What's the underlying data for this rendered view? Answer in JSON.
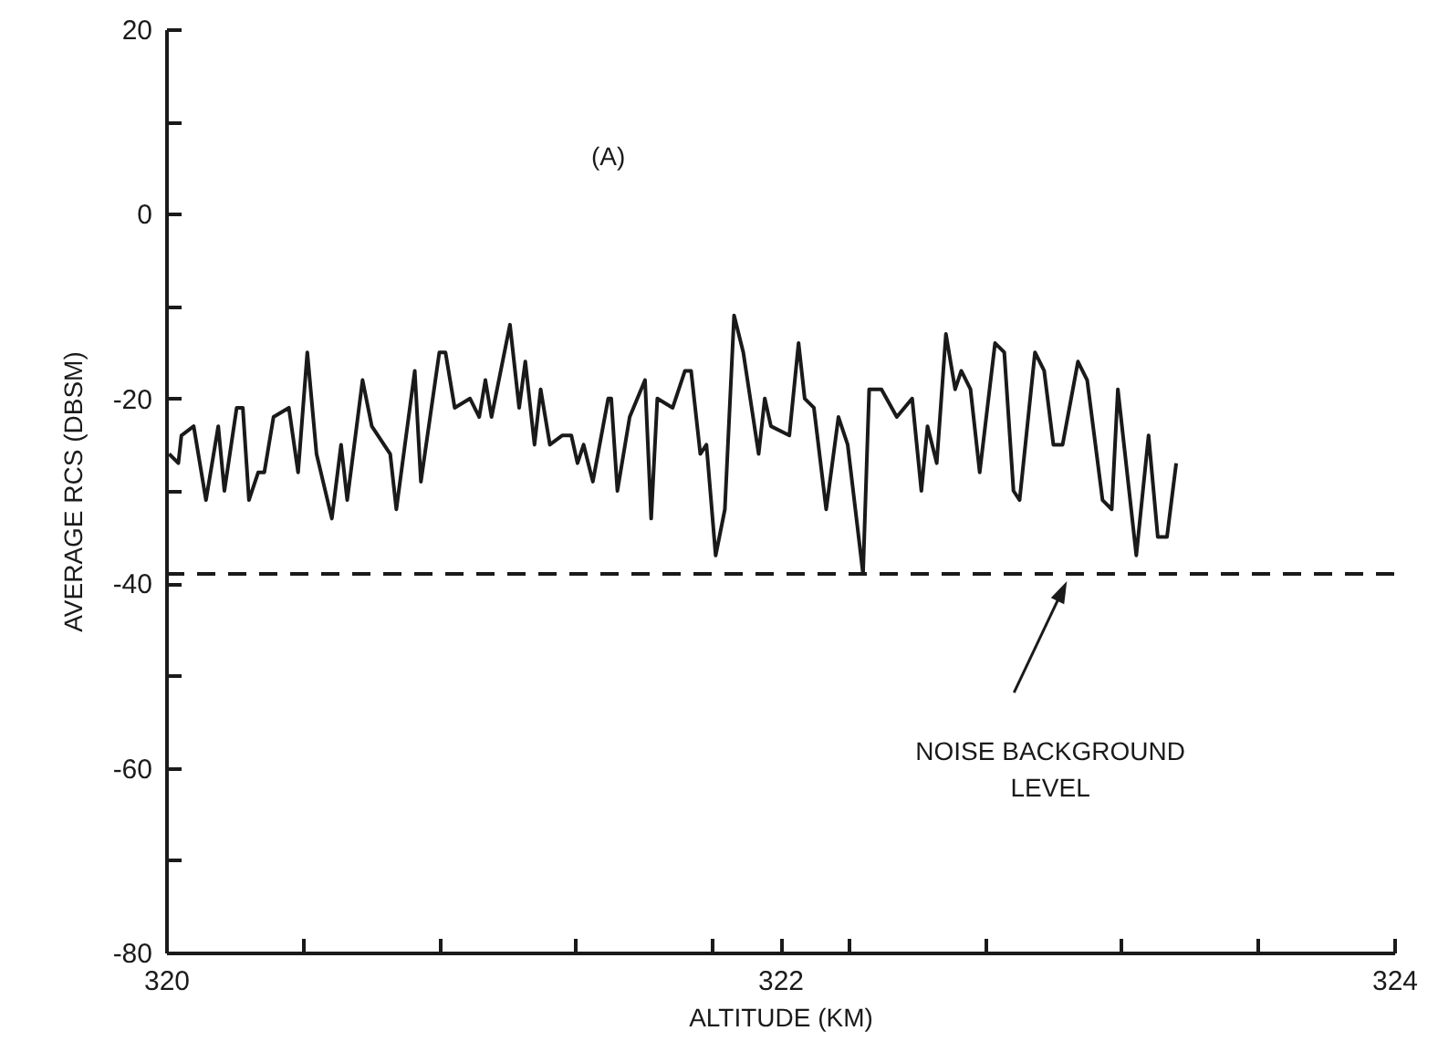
{
  "chart_data": {
    "type": "line",
    "xlabel": "ALTITUDE (KM)",
    "ylabel": "AVERAGE RCS (DBSM)",
    "xlim": [
      320,
      324
    ],
    "xticks": [
      320,
      {
        "value": 320.444,
        "label": null
      },
      {
        "value": 320.889,
        "label": null
      },
      {
        "value": 321.333,
        "label": null
      },
      {
        "value": 321.778,
        "label": null
      },
      322,
      {
        "value": 322.222,
        "label": null
      },
      {
        "value": 322.667,
        "label": null
      },
      {
        "value": 323.111,
        "label": null
      },
      {
        "value": 323.556,
        "label": null
      },
      324
    ],
    "ylim": [
      -80,
      20
    ],
    "yticks": [
      20,
      {
        "value": 10,
        "label": null
      },
      0,
      {
        "value": -10,
        "label": null
      },
      -20,
      {
        "value": -30,
        "label": null
      },
      -40,
      {
        "value": -50,
        "label": null
      },
      -60,
      {
        "value": -70,
        "label": null
      },
      -80
    ],
    "x": [
      320.01,
      320.04,
      320.05,
      320.09,
      320.13,
      320.17,
      320.19,
      320.23,
      320.25,
      320.27,
      320.3,
      320.32,
      320.35,
      320.4,
      320.43,
      320.46,
      320.49,
      320.54,
      320.57,
      320.59,
      320.64,
      320.67,
      320.73,
      320.75,
      320.81,
      320.83,
      320.89,
      320.91,
      320.94,
      320.99,
      321.02,
      321.04,
      321.06,
      321.12,
      321.15,
      321.17,
      321.2,
      321.22,
      321.25,
      321.29,
      321.32,
      321.34,
      321.36,
      321.39,
      321.44,
      321.45,
      321.47,
      321.51,
      321.56,
      321.58,
      321.6,
      321.65,
      321.69,
      321.71,
      321.74,
      321.76,
      321.79,
      321.82,
      321.85,
      321.88,
      321.93,
      321.95,
      321.97,
      322.03,
      322.06,
      322.08,
      322.11,
      322.15,
      322.19,
      322.22,
      322.27,
      322.29,
      322.33,
      322.38,
      322.43,
      322.46,
      322.48,
      322.51,
      322.54,
      322.57,
      322.59,
      322.62,
      322.65,
      322.7,
      322.73,
      322.76,
      322.78,
      322.83,
      322.86,
      322.89,
      322.92,
      322.97,
      323.0,
      323.05,
      323.08,
      323.1,
      323.16,
      323.2,
      323.23,
      323.26,
      323.29
    ],
    "series": [
      {
        "color": "#1a1a1a",
        "values": [
          -26,
          -27,
          -24,
          -23,
          -31,
          -23,
          -30,
          -21,
          -21,
          -31,
          -28,
          -28,
          -22,
          -21,
          -28,
          -15,
          -26,
          -33,
          -25,
          -31,
          -18,
          -23,
          -26,
          -32,
          -17,
          -29,
          -15,
          -15,
          -21,
          -20,
          -22,
          -18,
          -22,
          -12,
          -21,
          -16,
          -25,
          -19,
          -25,
          -24,
          -24,
          -27,
          -25,
          -29,
          -20,
          -20,
          -30,
          -22,
          -18,
          -33,
          -20,
          -21,
          -17,
          -17,
          -26,
          -25,
          -37,
          -32,
          -11,
          -15,
          -26,
          -20,
          -23,
          -24,
          -14,
          -20,
          -21,
          -32,
          -22,
          -25,
          -39,
          -19,
          -19,
          -22,
          -20,
          -30,
          -23,
          -27,
          -13,
          -19,
          -17,
          -19,
          -28,
          -14,
          -15,
          -30,
          -31,
          -15,
          -17,
          -25,
          -25,
          -16,
          -18,
          -31,
          -32,
          -19,
          -37,
          -24,
          -35,
          -35,
          -27
        ]
      }
    ],
    "ref_lines": [
      {
        "axis": "y",
        "value": -39,
        "color": "#1a1a1a",
        "line_style": "dashed"
      }
    ],
    "annotations": [
      "(A)",
      "NOISE BACKGROUND\nLEVEL"
    ]
  }
}
